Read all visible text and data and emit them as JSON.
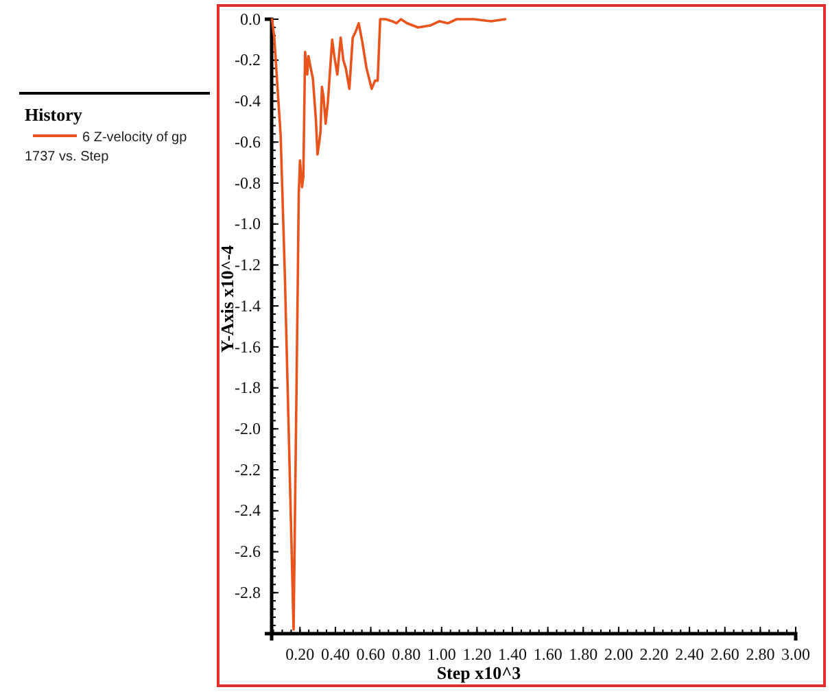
{
  "chart_data": {
    "type": "line",
    "xlabel": "Step x10^3",
    "ylabel": "Y-Axis x10^-4",
    "legend_title": "History",
    "legend": "left",
    "grid": false,
    "marker": "none",
    "line_style": "solid",
    "xlim": [
      0.04,
      3.0
    ],
    "ylim": [
      -3.0,
      0
    ],
    "xticks": [
      {
        "value": 0.2,
        "label": "0.20"
      },
      {
        "value": 0.4,
        "label": "0.40"
      },
      {
        "value": 0.6,
        "label": "0.60"
      },
      {
        "value": 0.8,
        "label": "0.80"
      },
      {
        "value": 1.0,
        "label": "1.00"
      },
      {
        "value": 1.2,
        "label": "1.20"
      },
      {
        "value": 1.4,
        "label": "1.40"
      },
      {
        "value": 1.6,
        "label": "1.60"
      },
      {
        "value": 1.8,
        "label": "1.80"
      },
      {
        "value": 2.0,
        "label": "2.00"
      },
      {
        "value": 2.2,
        "label": "2.20"
      },
      {
        "value": 2.4,
        "label": "2.40"
      },
      {
        "value": 2.6,
        "label": "2.60"
      },
      {
        "value": 2.8,
        "label": "2.80"
      },
      {
        "value": 3.0,
        "label": "3.00"
      }
    ],
    "yticks": [
      {
        "value": 0,
        "label": "0.0"
      },
      -0.2,
      -0.4,
      -0.6,
      -0.8,
      {
        "value": -1.0,
        "label": "-1.0"
      },
      -1.2,
      -1.4,
      -1.6,
      -1.8,
      {
        "value": -2.0,
        "label": "-2.0"
      },
      -2.2,
      -2.4,
      -2.6,
      -2.8
    ],
    "series": [
      {
        "name": "6 Z-velocity of gp 1737 vs. Step",
        "color": "#e8541c",
        "x": [
          0.042,
          0.055,
          0.091,
          0.115,
          0.164,
          0.188,
          0.193,
          0.2,
          0.212,
          0.219,
          0.229,
          0.241,
          0.248,
          0.261,
          0.273,
          0.29,
          0.299,
          0.309,
          0.316,
          0.324,
          0.333,
          0.345,
          0.358,
          0.382,
          0.394,
          0.411,
          0.43,
          0.445,
          0.459,
          0.479,
          0.498,
          0.515,
          0.532,
          0.552,
          0.576,
          0.605,
          0.624,
          0.639,
          0.653,
          0.685,
          0.721,
          0.745,
          0.77,
          0.806,
          0.867,
          0.939,
          0.988,
          1.036,
          1.085,
          1.182,
          1.279,
          1.36
        ],
        "values": [
          0.0,
          -0.09,
          -0.57,
          -1.26,
          -2.98,
          -1.26,
          -0.86,
          -0.69,
          -0.82,
          -0.77,
          -0.16,
          -0.27,
          -0.18,
          -0.24,
          -0.29,
          -0.49,
          -0.66,
          -0.6,
          -0.55,
          -0.33,
          -0.38,
          -0.51,
          -0.4,
          -0.1,
          -0.18,
          -0.27,
          -0.09,
          -0.2,
          -0.24,
          -0.34,
          -0.09,
          -0.06,
          -0.02,
          -0.11,
          -0.24,
          -0.34,
          -0.3,
          -0.3,
          0.0,
          0.0,
          -0.01,
          -0.02,
          0.0,
          -0.02,
          -0.04,
          -0.03,
          -0.01,
          -0.02,
          0.0,
          0.0,
          -0.01,
          0.0
        ]
      }
    ]
  }
}
